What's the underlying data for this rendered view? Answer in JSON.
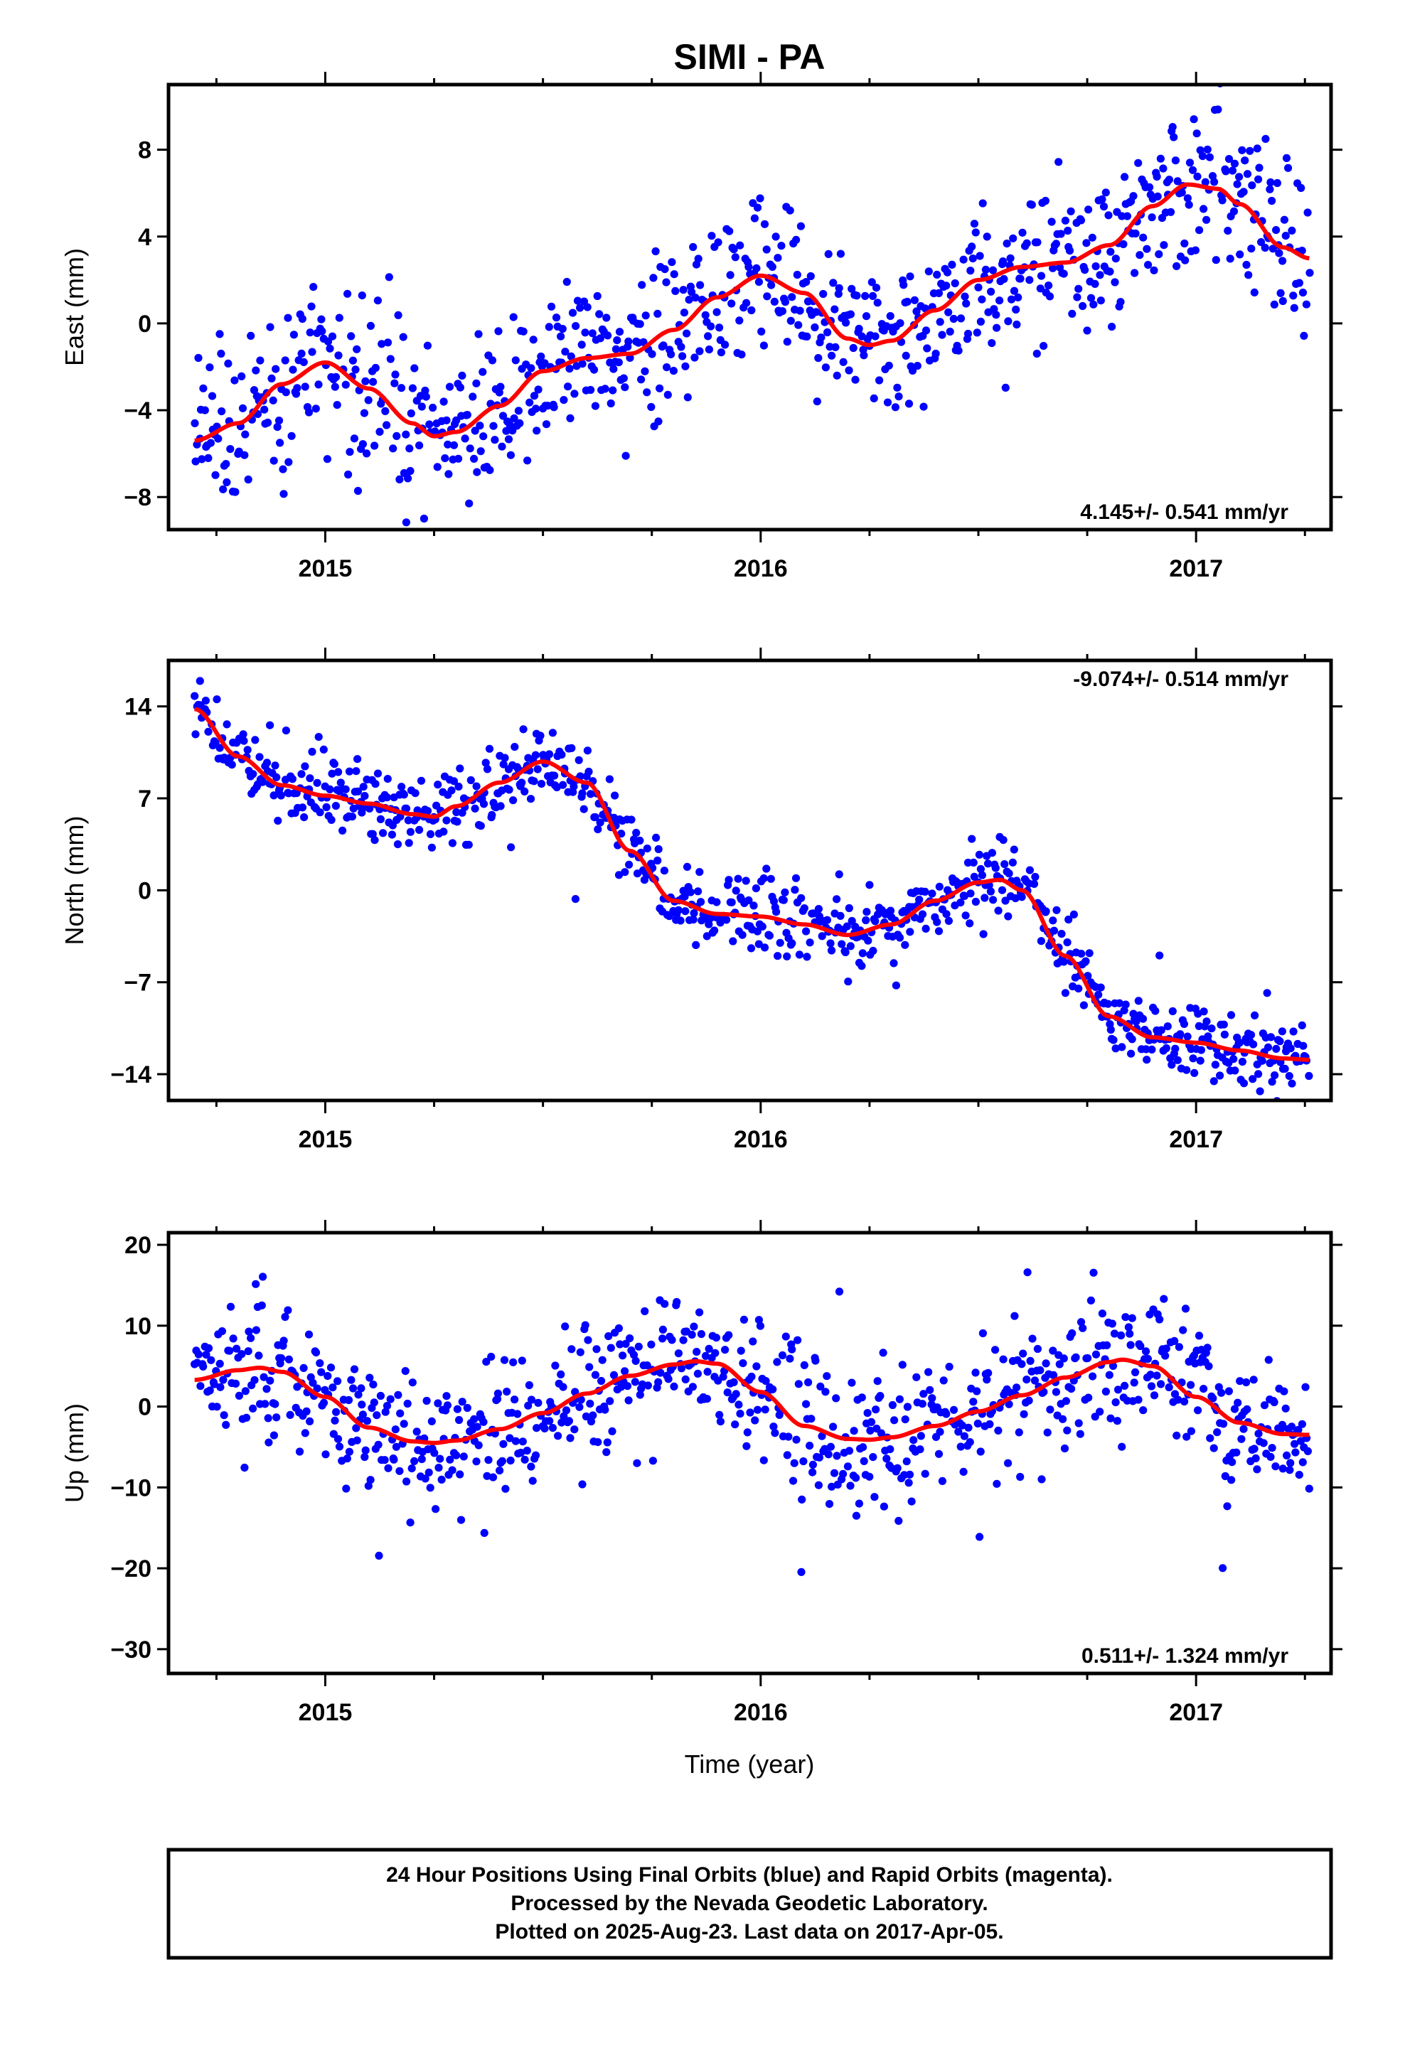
{
  "title": "SIMI - PA",
  "xlabel": "Time (year)",
  "footer_lines": [
    "24 Hour Positions Using Final Orbits (blue) and Rapid Orbits (magenta).",
    "Processed by the Nevada Geodetic Laboratory.",
    "Plotted on 2025-Aug-23. Last data on 2017-Apr-05."
  ],
  "colors": {
    "points": "#0000ff",
    "fit": "#ff0000",
    "rapid": "#ff00ff",
    "frame": "#000000"
  },
  "chart_data": [
    {
      "type": "scatter",
      "name": "east",
      "ylabel": "East (mm)",
      "rate_label": "4.145+/- 0.541 mm/yr",
      "rate_position": "bottom-right",
      "xlim": [
        2014.64,
        2017.31
      ],
      "ylim": [
        -9.5,
        11
      ],
      "x_ticks": [
        2015,
        2016,
        2017
      ],
      "x_tick_labels": [
        "2015",
        "2016",
        "2017"
      ],
      "y_ticks": [
        -8,
        -4,
        0,
        4,
        8
      ],
      "y_tick_labels": [
        "−8",
        "−4",
        "0",
        "4",
        "8"
      ],
      "fit_curve": {
        "x": [
          2014.7,
          2014.8,
          2014.9,
          2015.0,
          2015.1,
          2015.2,
          2015.25,
          2015.3,
          2015.4,
          2015.5,
          2015.6,
          2015.7,
          2015.8,
          2015.9,
          2016.0,
          2016.1,
          2016.2,
          2016.25,
          2016.3,
          2016.4,
          2016.5,
          2016.6,
          2016.7,
          2016.8,
          2016.9,
          2016.98,
          2017.05,
          2017.1,
          2017.2,
          2017.26
        ],
        "y": [
          -5.4,
          -4.6,
          -2.8,
          -1.8,
          -3.0,
          -4.6,
          -5.2,
          -5.0,
          -3.8,
          -2.2,
          -1.6,
          -1.4,
          -0.3,
          1.2,
          2.2,
          1.4,
          -0.7,
          -1.0,
          -0.8,
          0.6,
          2.0,
          2.6,
          2.8,
          3.6,
          5.4,
          6.4,
          6.2,
          5.5,
          3.5,
          3.0
        ]
      },
      "points_summary": "daily positions, about 900 epochs from 2014.70 to 2017.26, scatter of about 1.8 mm around the fit"
    },
    {
      "type": "scatter",
      "name": "north",
      "ylabel": "North (mm)",
      "rate_label": "-9.074+/- 0.514 mm/yr",
      "rate_position": "top-right",
      "xlim": [
        2014.64,
        2017.31
      ],
      "ylim": [
        -16,
        17.5
      ],
      "x_ticks": [
        2015,
        2016,
        2017
      ],
      "x_tick_labels": [
        "2015",
        "2016",
        "2017"
      ],
      "y_ticks": [
        -14,
        -7,
        0,
        7,
        14
      ],
      "y_tick_labels": [
        "−14",
        "−7",
        "0",
        "7",
        "14"
      ],
      "fit_curve": {
        "x": [
          2014.7,
          2014.8,
          2014.9,
          2015.0,
          2015.1,
          2015.2,
          2015.25,
          2015.3,
          2015.4,
          2015.5,
          2015.6,
          2015.7,
          2015.8,
          2015.9,
          2016.0,
          2016.1,
          2016.2,
          2016.3,
          2016.4,
          2016.5,
          2016.55,
          2016.6,
          2016.7,
          2016.8,
          2016.9,
          2017.0,
          2017.1,
          2017.2,
          2017.26
        ],
        "y": [
          13.8,
          10.2,
          8.0,
          7.2,
          6.6,
          5.8,
          5.6,
          6.4,
          8.2,
          9.8,
          8.2,
          3.0,
          -0.8,
          -1.8,
          -2.0,
          -2.6,
          -3.4,
          -2.6,
          -0.8,
          0.6,
          0.8,
          0.0,
          -5.0,
          -9.6,
          -11.2,
          -11.6,
          -12.2,
          -12.8,
          -12.9
        ]
      },
      "points_summary": "daily positions, about 900 epochs from 2014.70 to 2017.26, scatter of about 1.4 mm around the fit"
    },
    {
      "type": "scatter",
      "name": "up",
      "ylabel": "Up (mm)",
      "rate_label": "0.511+/- 1.324 mm/yr",
      "rate_position": "bottom-right",
      "xlim": [
        2014.64,
        2017.31
      ],
      "ylim": [
        -33,
        21.5
      ],
      "x_ticks": [
        2015,
        2016,
        2017
      ],
      "x_tick_labels": [
        "2015",
        "2016",
        "2017"
      ],
      "y_ticks": [
        -30,
        -20,
        -10,
        0,
        10,
        20
      ],
      "y_tick_labels": [
        "−30",
        "−20",
        "−10",
        "0",
        "10",
        "20"
      ],
      "fit_curve": {
        "x": [
          2014.7,
          2014.8,
          2014.85,
          2014.9,
          2015.0,
          2015.1,
          2015.2,
          2015.25,
          2015.3,
          2015.4,
          2015.5,
          2015.6,
          2015.7,
          2015.8,
          2015.85,
          2015.9,
          2016.0,
          2016.1,
          2016.2,
          2016.25,
          2016.3,
          2016.4,
          2016.5,
          2016.6,
          2016.7,
          2016.8,
          2016.83,
          2016.9,
          2017.0,
          2017.1,
          2017.2,
          2017.26
        ],
        "y": [
          3.3,
          4.5,
          4.8,
          4.3,
          1.2,
          -2.6,
          -4.3,
          -4.5,
          -4.2,
          -2.8,
          -0.8,
          1.6,
          3.8,
          5.2,
          5.6,
          5.3,
          1.8,
          -2.4,
          -4.0,
          -4.1,
          -3.8,
          -2.4,
          -0.6,
          1.4,
          3.6,
          5.5,
          5.8,
          5.0,
          1.2,
          -2.0,
          -3.4,
          -3.5
        ]
      },
      "points_summary": "daily positions, about 900 epochs from 2014.70 to 2017.26, scatter of about 4.5 mm around the fit"
    }
  ]
}
